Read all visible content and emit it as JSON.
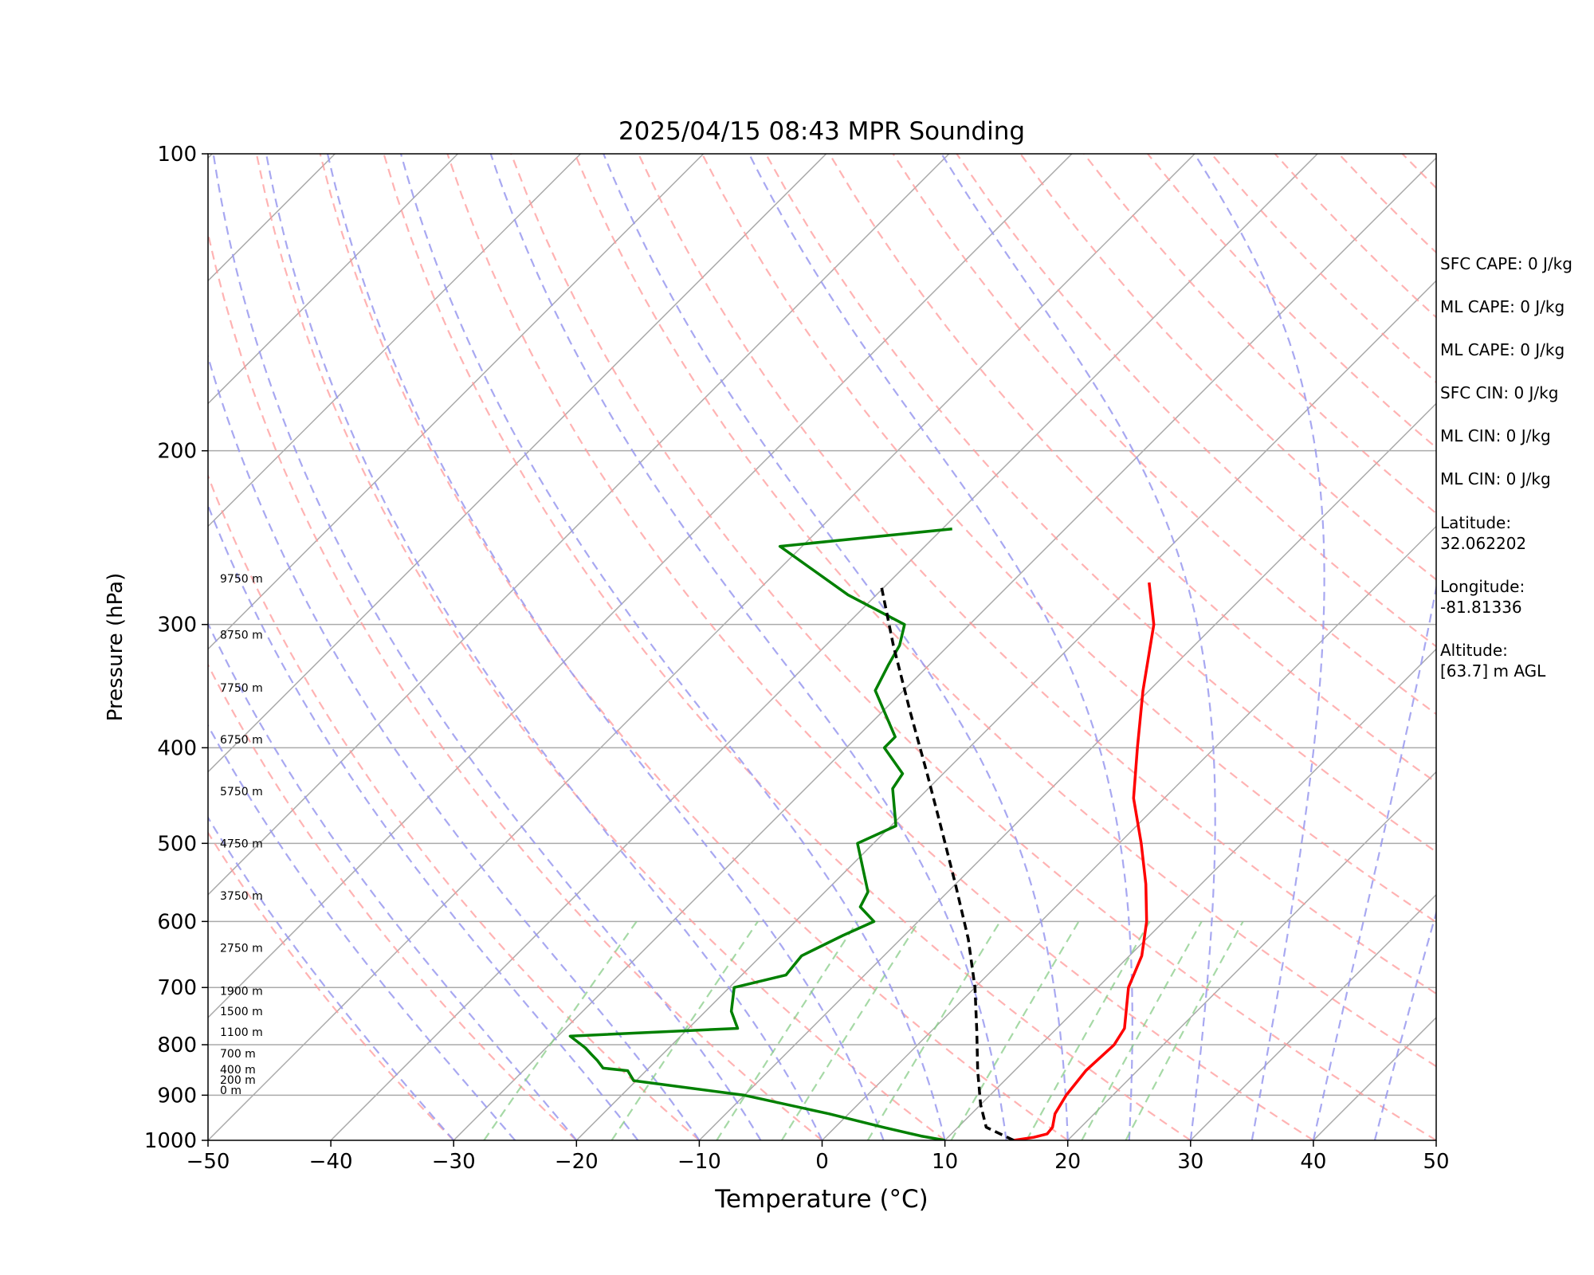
{
  "chart_data": {
    "type": "line",
    "title": "2025/04/15 08:43 MPR Sounding",
    "xlabel": "Temperature (°C)",
    "ylabel": "Pressure (hPa)",
    "xlim": [
      -50,
      50
    ],
    "ylim": [
      1000,
      100
    ],
    "y_scale": "log",
    "x_ticks": [
      "−50",
      "−40",
      "−30",
      "−20",
      "−10",
      "0",
      "10",
      "20",
      "30",
      "40",
      "50"
    ],
    "y_ticks": [
      "100",
      "200",
      "300",
      "400",
      "500",
      "600",
      "700",
      "800",
      "900",
      "1000"
    ],
    "height_labels": [
      {
        "label": "9750 m",
        "p": 272
      },
      {
        "label": "8750 m",
        "p": 310
      },
      {
        "label": "7750 m",
        "p": 351
      },
      {
        "label": "6750 m",
        "p": 396
      },
      {
        "label": "5750 m",
        "p": 447
      },
      {
        "label": "4750 m",
        "p": 505
      },
      {
        "label": "3750 m",
        "p": 570
      },
      {
        "label": "2750 m",
        "p": 644
      },
      {
        "label": "1900 m",
        "p": 712
      },
      {
        "label": "1500 m",
        "p": 747
      },
      {
        "label": "1100 m",
        "p": 784
      },
      {
        "label": "700 m",
        "p": 824
      },
      {
        "label": "400 m",
        "p": 855
      },
      {
        "label": "200 m",
        "p": 876
      },
      {
        "label": "0 m",
        "p": 898
      }
    ],
    "series": [
      {
        "role": "temperature",
        "color": "#ff0000",
        "points": [
          [
            15.6,
            1000
          ],
          [
            17.0,
            993
          ],
          [
            17.8,
            985
          ],
          [
            17.7,
            970
          ],
          [
            16.8,
            940
          ],
          [
            16.2,
            900
          ],
          [
            15.8,
            850
          ],
          [
            16.0,
            800
          ],
          [
            15.5,
            770
          ],
          [
            12.5,
            700
          ],
          [
            11.0,
            650
          ],
          [
            8.6,
            600
          ],
          [
            5.5,
            550
          ],
          [
            1.8,
            500
          ],
          [
            -2.5,
            450
          ],
          [
            -6.3,
            400
          ],
          [
            -10.5,
            350
          ],
          [
            -15.0,
            300
          ],
          [
            -18.8,
            272
          ]
        ]
      },
      {
        "role": "dewpoint",
        "color": "#008000",
        "points": [
          [
            10.0,
            1000
          ],
          [
            7.7,
            990
          ],
          [
            3.9,
            970
          ],
          [
            -1.6,
            940
          ],
          [
            -10.0,
            900
          ],
          [
            -20.2,
            870
          ],
          [
            -21.5,
            850
          ],
          [
            -23.7,
            845
          ],
          [
            -24.8,
            830
          ],
          [
            -25.8,
            818
          ],
          [
            -26.8,
            806
          ],
          [
            -29.0,
            784
          ],
          [
            -16.0,
            770
          ],
          [
            -17.9,
            740
          ],
          [
            -19.6,
            700
          ],
          [
            -16.4,
            680
          ],
          [
            -16.7,
            650
          ],
          [
            -15.0,
            620
          ],
          [
            -13.6,
            600
          ],
          [
            -15.9,
            580
          ],
          [
            -16.5,
            560
          ],
          [
            -21.3,
            500
          ],
          [
            -19.6,
            480
          ],
          [
            -22.9,
            440
          ],
          [
            -23.3,
            425
          ],
          [
            -26.9,
            400
          ],
          [
            -26.9,
            390
          ],
          [
            -32.3,
            350
          ],
          [
            -33.3,
            330
          ],
          [
            -34.0,
            315
          ],
          [
            -35.3,
            300
          ],
          [
            -42.3,
            280
          ],
          [
            -51.8,
            250
          ],
          [
            -39.2,
            240
          ]
        ]
      },
      {
        "role": "parcel",
        "color": "#000000",
        "dashed": true,
        "points": [
          [
            15.6,
            1000
          ],
          [
            12.3,
            970
          ],
          [
            10.0,
            920
          ],
          [
            7.0,
            850
          ],
          [
            3.7,
            775
          ],
          [
            0.0,
            700
          ],
          [
            -4.5,
            625
          ],
          [
            -10.0,
            550
          ],
          [
            -15.5,
            485
          ],
          [
            -21.3,
            425
          ],
          [
            -27.7,
            368
          ],
          [
            -34.5,
            315
          ],
          [
            -39.0,
            283
          ],
          [
            -40.2,
            275
          ]
        ]
      }
    ],
    "background_lines": {
      "isotherm_color": "#aaaaaa",
      "isobar_color": "#aaaaaa",
      "dry_adiabat_color": "#ff9999",
      "moist_adiabat_color": "#9999ee",
      "mixing_ratio_color": "#88cc88"
    }
  },
  "info": {
    "sfc_cape": "SFC CAPE: 0 J/kg",
    "ml_cape": "ML CAPE: 0 J/kg",
    "mu_cape": "ML CAPE: 0 J/kg",
    "sfc_cin": "SFC CIN: 0 J/kg",
    "ml_cin": "ML CIN: 0 J/kg",
    "mu_cin": "ML CIN: 0 J/kg",
    "latitude_label": "Latitude:",
    "latitude_value": "32.062202",
    "longitude_label": "Longitude:",
    "longitude_value": "-81.81336",
    "altitude_label": "Altitude:",
    "altitude_value": "[63.7] m AGL"
  }
}
